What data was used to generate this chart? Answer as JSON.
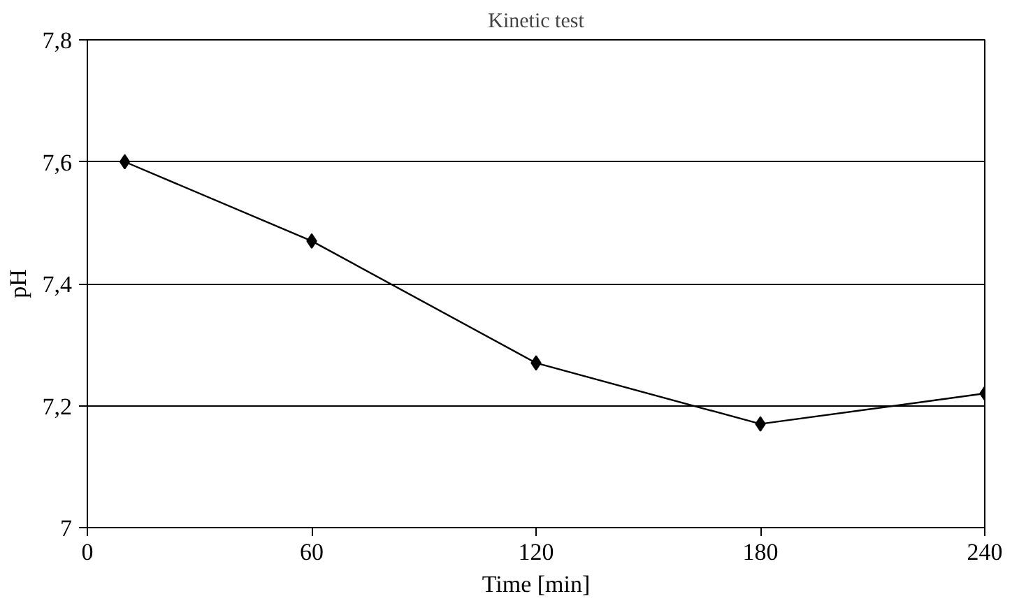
{
  "chart_data": {
    "type": "line",
    "title": "Kinetic test",
    "xlabel": "Time [min]",
    "ylabel": "pH",
    "x": [
      10,
      60,
      120,
      180,
      240
    ],
    "series": [
      {
        "color": "#000000",
        "values": [
          7.6,
          7.47,
          7.27,
          7.17,
          7.22
        ]
      }
    ],
    "xlim": [
      0,
      240
    ],
    "xticks": [
      0,
      60,
      120,
      180,
      240
    ],
    "ylim": [
      7,
      7.8
    ],
    "yticks": [
      7,
      {
        "value": 7.2,
        "label": "7,2"
      },
      {
        "value": 7.4,
        "label": "7,4"
      },
      {
        "value": 7.6,
        "label": "7,6"
      },
      {
        "value": 7.8,
        "label": "7,8"
      }
    ],
    "grid": "y",
    "marker": "diamond",
    "line_style": "solid"
  }
}
